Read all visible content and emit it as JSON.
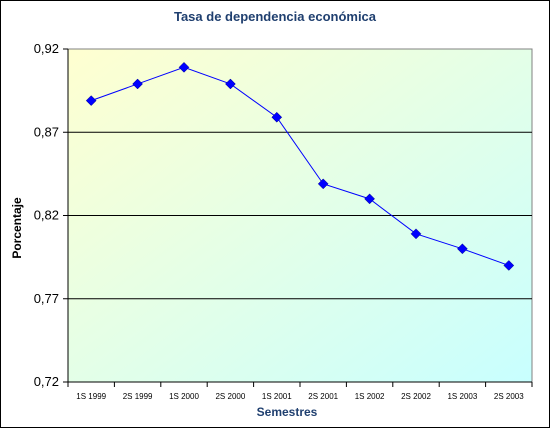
{
  "chart_data": {
    "type": "line",
    "title": "Tasa de dependencia económica",
    "xlabel": "Semestres",
    "ylabel": "Porcentaje",
    "categories": [
      "1S 1999",
      "2S 1999",
      "1S 2000",
      "2S 2000",
      "1S 2001",
      "2S 2001",
      "1S 2002",
      "2S 2002",
      "1S 2003",
      "2S 2003"
    ],
    "y_tick_labels": [
      "0,72",
      "0,77",
      "0,82",
      "0,87",
      "0,92"
    ],
    "ylim": [
      0.72,
      0.92
    ],
    "series": [
      {
        "values": [
          0.889,
          0.899,
          0.909,
          0.899,
          0.879,
          0.839,
          0.83,
          0.809,
          0.8,
          0.79
        ]
      }
    ],
    "grid": "horizontal",
    "legend": "none",
    "colors": {
      "line": "#0000ff",
      "marker": "#0000ff",
      "gridline": "#000000",
      "background_start": "#ffffd0",
      "background_end": "#c8ffff"
    }
  }
}
